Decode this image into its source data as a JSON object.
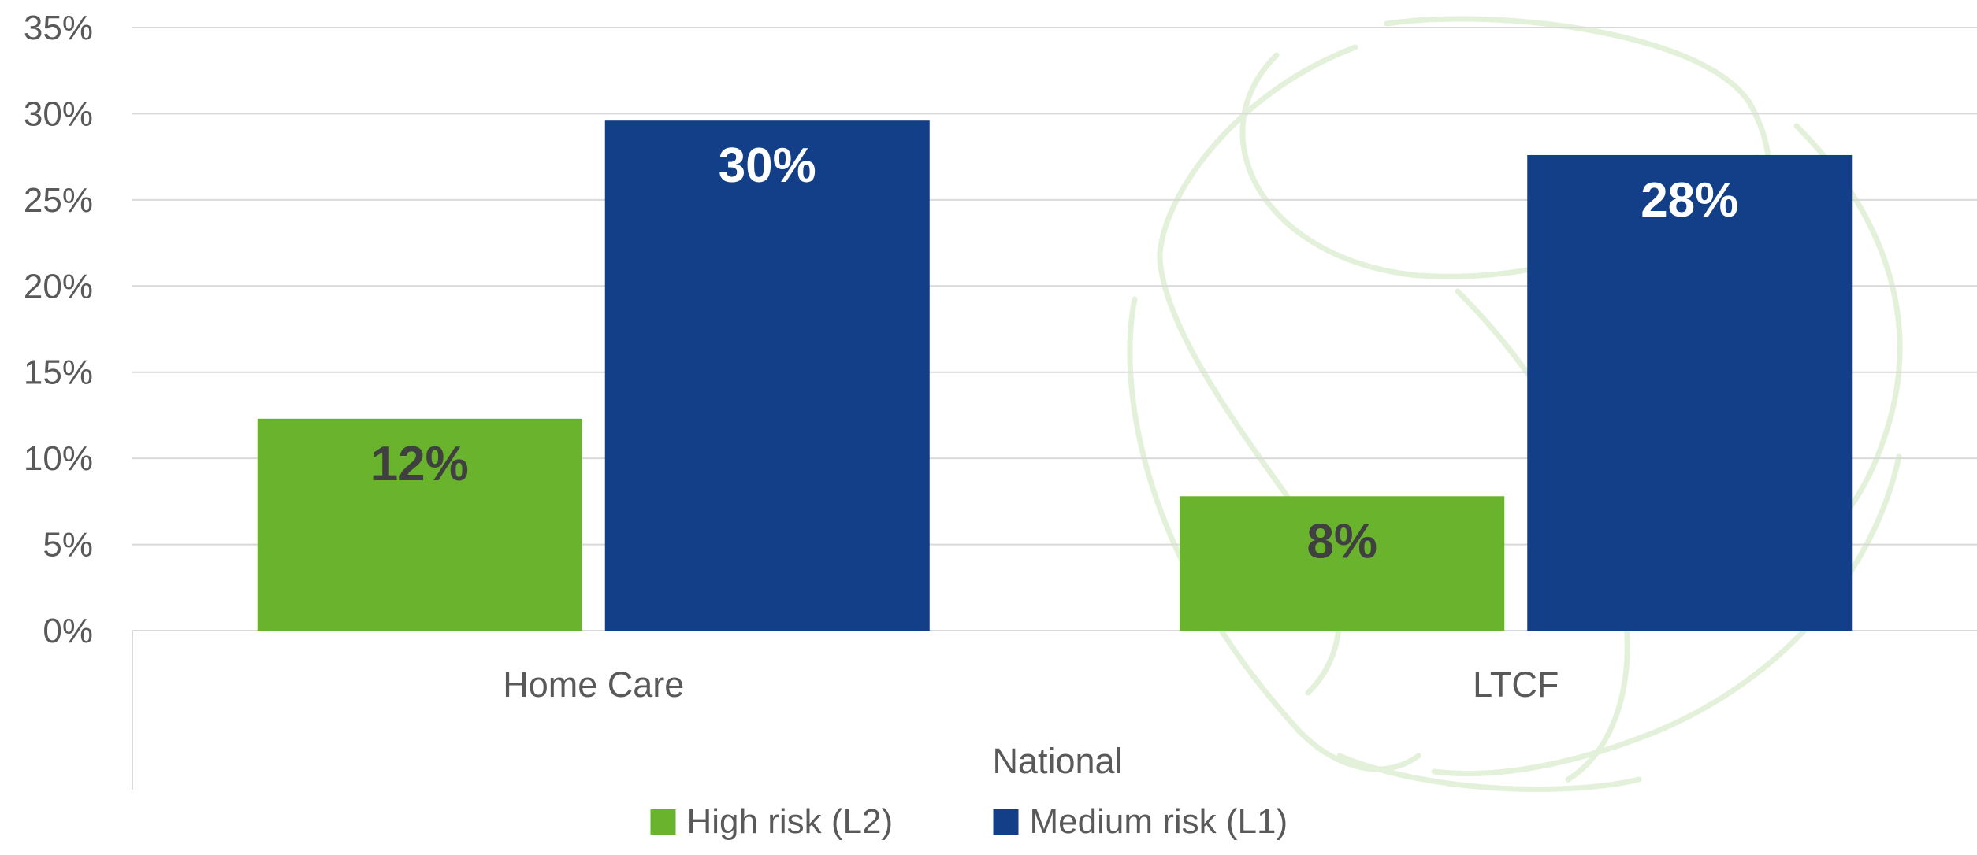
{
  "chart_data": {
    "type": "bar",
    "categories": [
      "Home Care",
      "LTCF"
    ],
    "group_label": "National",
    "series": [
      {
        "name": "High risk (L2)",
        "values": [
          12.3,
          7.8
        ],
        "data_labels": [
          "12%",
          "8%"
        ],
        "color": "#6ab42d",
        "label_color": "#404040"
      },
      {
        "name": "Medium risk (L1)",
        "values": [
          29.6,
          27.6
        ],
        "data_labels": [
          "30%",
          "28%"
        ],
        "color": "#123f87",
        "label_color": "#ffffff"
      }
    ],
    "ylim": [
      0,
      35
    ],
    "y_ticks": [
      0,
      5,
      10,
      15,
      20,
      25,
      30,
      35
    ],
    "y_tick_labels": [
      "0%",
      "5%",
      "10%",
      "15%",
      "20%",
      "25%",
      "30%",
      "35%"
    ],
    "grid": true,
    "legend_position": "bottom-center",
    "watermark": "faint green leaf logo",
    "grid_color": "#d9d9d9",
    "text_color": "#595959"
  }
}
